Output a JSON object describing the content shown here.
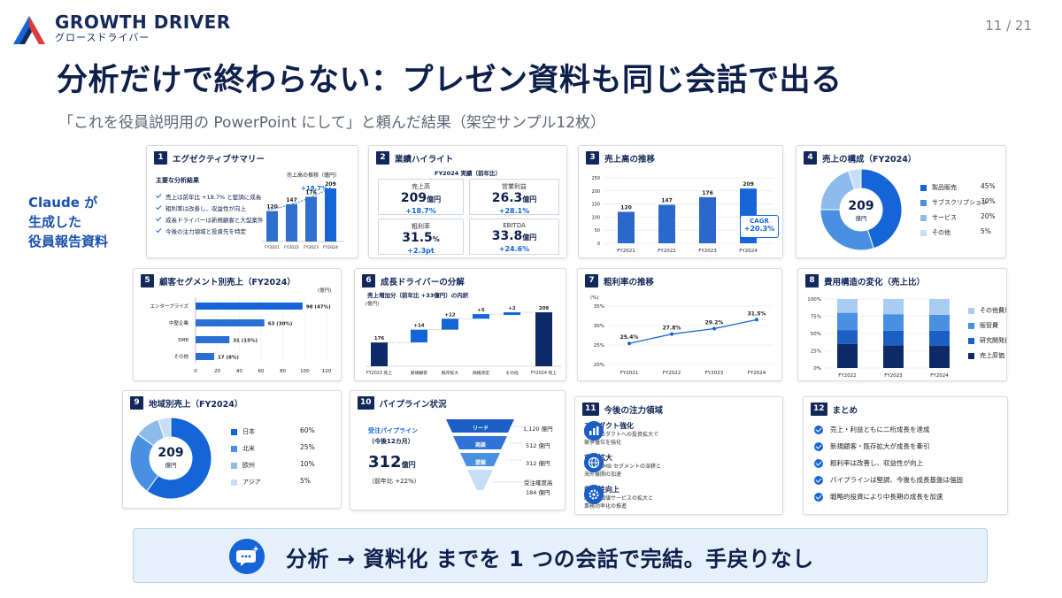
{
  "header": {
    "brand_name": "GROWTH DRIVER",
    "brand_sub": "グロースドライバー",
    "page": "11 / 21",
    "title": "分析だけで終わらない：プレゼン資料も同じ会話で出る",
    "subtitle": "「これを役員説明用の PowerPoint にして」と頼んだ結果（架空サンプル12枚）",
    "side_note_1": "Claude が",
    "side_note_2": "生成した",
    "side_note_3": "役員報告資料"
  },
  "colors": {
    "navy": "#12285a",
    "blue": "#1565d8",
    "mid": "#4a90e2",
    "light": "#a9cdf2"
  },
  "cards": {
    "c1": {
      "num": "1",
      "title": "エグゼクティブサマリー",
      "list_title": "主要な分析結果",
      "items": [
        "売上は前年比 +18.7% と堅調に成長",
        "粗利率は改善し、収益性が向上",
        "成長ドライバーは新規顧客と大型案件",
        "今後の注力領域と投資先を特定"
      ],
      "chart_title": "売上高の推移（億円）",
      "growth": "+18.7%"
    },
    "c2": {
      "num": "2",
      "title": "業績ハイライト",
      "sub": "FY2024 実績（前年比）",
      "metrics": [
        {
          "label": "売上高",
          "value": "209",
          "unit": "億円",
          "change": "+18.7%"
        },
        {
          "label": "営業利益",
          "value": "26.3",
          "unit": "億円",
          "change": "+28.1%"
        },
        {
          "label": "粗利率",
          "value": "31.5",
          "unit": "%",
          "change": "+2.3pt"
        },
        {
          "label": "EBITDA",
          "value": "33.8",
          "unit": "億円",
          "change": "+24.6%"
        }
      ]
    },
    "c3": {
      "num": "3",
      "title": "売上高の推移",
      "cagr_label": "CAGR",
      "cagr_value": "+20.3%"
    },
    "c4": {
      "num": "4",
      "title": "売上の構成（FY2024）",
      "center": "209",
      "center_unit": "億円",
      "legend": [
        {
          "name": "製品販売",
          "pct": "45%",
          "color": "#1565d8"
        },
        {
          "name": "サブスクリプション",
          "pct": "30%",
          "color": "#4a90e2"
        },
        {
          "name": "サービス",
          "pct": "20%",
          "color": "#8dbcec"
        },
        {
          "name": "その他",
          "pct": "5%",
          "color": "#c7dff6"
        }
      ]
    },
    "c5": {
      "num": "5",
      "title": "顧客セグメント別売上（FY2024）",
      "unit": "(億円)"
    },
    "c6": {
      "num": "6",
      "title": "成長ドライバーの分解",
      "sub": "売上増加分（前年比 +33億円）の内訳",
      "unit": "(億円)"
    },
    "c7": {
      "num": "7",
      "title": "粗利率の推移",
      "unit": "(%)"
    },
    "c8": {
      "num": "8",
      "title": "費用構造の変化（売上比）",
      "legend": [
        {
          "name": "その他費用",
          "color": "#a9cdf2"
        },
        {
          "name": "販管費",
          "color": "#4a90e2"
        },
        {
          "name": "研究開発費",
          "color": "#1b5fc5"
        },
        {
          "name": "売上原価",
          "color": "#0e2a66"
        }
      ]
    },
    "c9": {
      "num": "9",
      "title": "地域別売上（FY2024）",
      "center": "209",
      "center_unit": "億円",
      "legend": [
        {
          "name": "日本",
          "pct": "60%",
          "color": "#1565d8"
        },
        {
          "name": "北米",
          "pct": "25%",
          "color": "#4a90e2"
        },
        {
          "name": "欧州",
          "pct": "10%",
          "color": "#8dbcec"
        },
        {
          "name": "アジア",
          "pct": "5%",
          "color": "#c7dff6"
        }
      ]
    },
    "c10": {
      "num": "10",
      "title": "パイプライン状況",
      "label1": "受注パイプライン",
      "label2": "（今後12カ月）",
      "value": "312",
      "unit": "億円",
      "yoy": "（前年比 +22%）",
      "stages": [
        {
          "name": "リード",
          "amount": "1,120 億円"
        },
        {
          "name": "商談",
          "amount": "512 億円"
        },
        {
          "name": "提案",
          "amount": "312 億円"
        }
      ],
      "forecast_label": "受注確度高",
      "forecast_value": "184 億円"
    },
    "c11": {
      "num": "11",
      "title": "今後の注力領域",
      "items": [
        {
          "title": "プロダクト強化",
          "desc1": "中核プロダクトへの投資拡大で",
          "desc2": "競争優位を強化"
        },
        {
          "title": "市場拡大",
          "desc1": "中堅・SMB セグメントの深耕と",
          "desc2": "海外展開の加速"
        },
        {
          "title": "収益性向上",
          "desc1": "高付加価値サービスの拡大と",
          "desc2": "業務効率化の推進"
        }
      ]
    },
    "c12": {
      "num": "12",
      "title": "まとめ",
      "items": [
        "売上・利益ともに二桁成長を達成",
        "新規顧客・既存拡大が成長を牽引",
        "粗利率は改善し、収益性が向上",
        "パイプラインは堅調、今後も成長基盤は強固",
        "戦略的投資により中長期の成長を加速"
      ]
    }
  },
  "banner": {
    "text": "分析 → 資料化 までを 1 つの会話で完結。手戻りなし"
  },
  "chart_data": [
    {
      "id": "c1-revenue",
      "type": "bar",
      "categories": [
        "FY2021",
        "FY2022",
        "FY2023",
        "FY2024"
      ],
      "values": [
        120,
        147,
        176,
        209
      ],
      "title": "売上高の推移（億円）"
    },
    {
      "id": "c3-revenue",
      "type": "bar",
      "categories": [
        "FY2021",
        "FY2022",
        "FY2023",
        "FY2024"
      ],
      "values": [
        120,
        147,
        176,
        209
      ],
      "ylim": [
        0,
        250
      ],
      "yticks": [
        0,
        50,
        100,
        150,
        200,
        250
      ]
    },
    {
      "id": "c4-composition",
      "type": "pie",
      "categories": [
        "製品販売",
        "サブスクリプション",
        "サービス",
        "その他"
      ],
      "values": [
        45,
        30,
        20,
        5
      ]
    },
    {
      "id": "c5-segments",
      "type": "bar",
      "orientation": "horizontal",
      "categories": [
        "エンタープライズ",
        "中堅企業",
        "SMB",
        "その他"
      ],
      "values": [
        98,
        63,
        31,
        17
      ],
      "labels": [
        "98 (47%)",
        "63 (30%)",
        "31 (15%)",
        "17 (8%)"
      ],
      "xlim": [
        0,
        120
      ],
      "xticks": [
        0,
        20,
        40,
        60,
        80,
        100,
        120
      ]
    },
    {
      "id": "c6-waterfall",
      "type": "bar",
      "subtype": "waterfall",
      "categories": [
        "FY2023 売上",
        "新規顧客",
        "既存拡大",
        "価格改定",
        "その他",
        "FY2024 売上"
      ],
      "values": [
        176,
        14,
        12,
        5,
        2,
        209
      ],
      "labels": [
        "176",
        "+14",
        "+12",
        "+5",
        "+2",
        "209"
      ]
    },
    {
      "id": "c7-margin",
      "type": "line",
      "categories": [
        "FY2021",
        "FY2022",
        "FY2023",
        "FY2024"
      ],
      "values": [
        25.4,
        27.8,
        29.2,
        31.5
      ],
      "labels": [
        "25.4%",
        "27.8%",
        "29.2%",
        "31.5%"
      ],
      "ylim": [
        20,
        35
      ],
      "yticks": [
        "20%",
        "25%",
        "30%",
        "35%"
      ]
    },
    {
      "id": "c8-costs",
      "type": "bar",
      "subtype": "stacked",
      "categories": [
        "FY2022",
        "FY2023",
        "FY2024"
      ],
      "series": [
        {
          "name": "売上原価",
          "values": [
            35,
            33,
            32
          ]
        },
        {
          "name": "研究開発費",
          "values": [
            20,
            21,
            22
          ]
        },
        {
          "name": "販管費",
          "values": [
            25,
            24,
            23
          ]
        },
        {
          "name": "その他費用",
          "values": [
            20,
            22,
            23
          ]
        }
      ],
      "ylim": [
        0,
        100
      ],
      "yticks": [
        "0%",
        "25%",
        "50%",
        "75%",
        "100%"
      ]
    },
    {
      "id": "c9-regions",
      "type": "pie",
      "categories": [
        "日本",
        "北米",
        "欧州",
        "アジア"
      ],
      "values": [
        60,
        25,
        10,
        5
      ]
    }
  ]
}
